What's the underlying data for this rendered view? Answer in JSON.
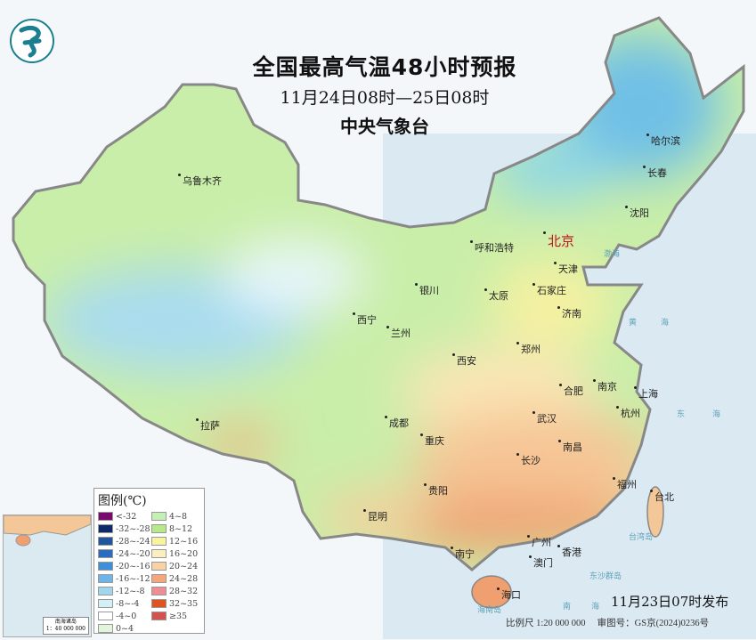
{
  "header": {
    "title": "全国最高气温48小时预报",
    "period": "11月24日08时—25日08时",
    "issuer": "中央气象台",
    "logo_icon": "cma-logo-icon"
  },
  "cities": {
    "urumqi": "乌鲁木齐",
    "harbin": "哈尔滨",
    "changchun": "长春",
    "shenyang": "沈阳",
    "hohhot": "呼和浩特",
    "beijing": "北京",
    "tianjin": "天津",
    "yinchuan": "银川",
    "taiyuan": "太原",
    "shijiazhuang": "石家庄",
    "xining": "西宁",
    "lanzhou": "兰州",
    "jinan": "济南",
    "zhengzhou": "郑州",
    "xian": "西安",
    "nanjing": "南京",
    "shanghai": "上海",
    "hefei": "合肥",
    "hangzhou": "杭州",
    "wuhan": "武汉",
    "chengdu": "成都",
    "lhasa": "拉萨",
    "chongqing": "重庆",
    "changsha": "长沙",
    "nanchang": "南昌",
    "fuzhou": "福州",
    "taipei": "台北",
    "guiyang": "贵阳",
    "kunming": "昆明",
    "nanning": "南宁",
    "guangzhou": "广州",
    "hongkong": "香港",
    "macau": "澳门",
    "haikou": "海口"
  },
  "seas": {
    "bohai": "渤海",
    "huang": "黄",
    "huang2": "海",
    "dong": "东",
    "dong2": "海",
    "taiwan": "台湾岛",
    "dongsha": "东沙群岛",
    "hainan": "海南岛",
    "nan": "南",
    "nan2": "海"
  },
  "legend": {
    "title": "图例(℃)",
    "items": [
      {
        "label": "<-32",
        "color": "#7b0a6e"
      },
      {
        "label": "-32~-28",
        "color": "#0c2a6a"
      },
      {
        "label": "-28~-24",
        "color": "#20579c"
      },
      {
        "label": "-24~-20",
        "color": "#2c6cbf"
      },
      {
        "label": "-20~-16",
        "color": "#3e8fd8"
      },
      {
        "label": "-16~-12",
        "color": "#6db4e8"
      },
      {
        "label": "-12~-8",
        "color": "#9fd6ec"
      },
      {
        "label": "-8~-4",
        "color": "#d3f0f8"
      },
      {
        "label": "-4~0",
        "color": "#ffffff"
      },
      {
        "label": "0~4",
        "color": "#e1f5dc"
      },
      {
        "label": "4~8",
        "color": "#c6efb5"
      },
      {
        "label": "8~12",
        "color": "#b6e98a"
      },
      {
        "label": "12~16",
        "color": "#f7f3a0"
      },
      {
        "label": "16~20",
        "color": "#fbeec0"
      },
      {
        "label": "20~24",
        "color": "#f8d2a5"
      },
      {
        "label": "24~28",
        "color": "#f3a77a"
      },
      {
        "label": "28~32",
        "color": "#ee8d93"
      },
      {
        "label": "32~35",
        "color": "#e0541f"
      },
      {
        "label": "≥35",
        "color": "#d2524f"
      }
    ]
  },
  "inset": {
    "name": "南海诸岛",
    "scale": "1：40 000 000"
  },
  "footer": {
    "issued": "11月23日07时发布",
    "scale": "比例尺 1:20 000 000",
    "review_no": "审图号：GS京(2024)0236号"
  }
}
